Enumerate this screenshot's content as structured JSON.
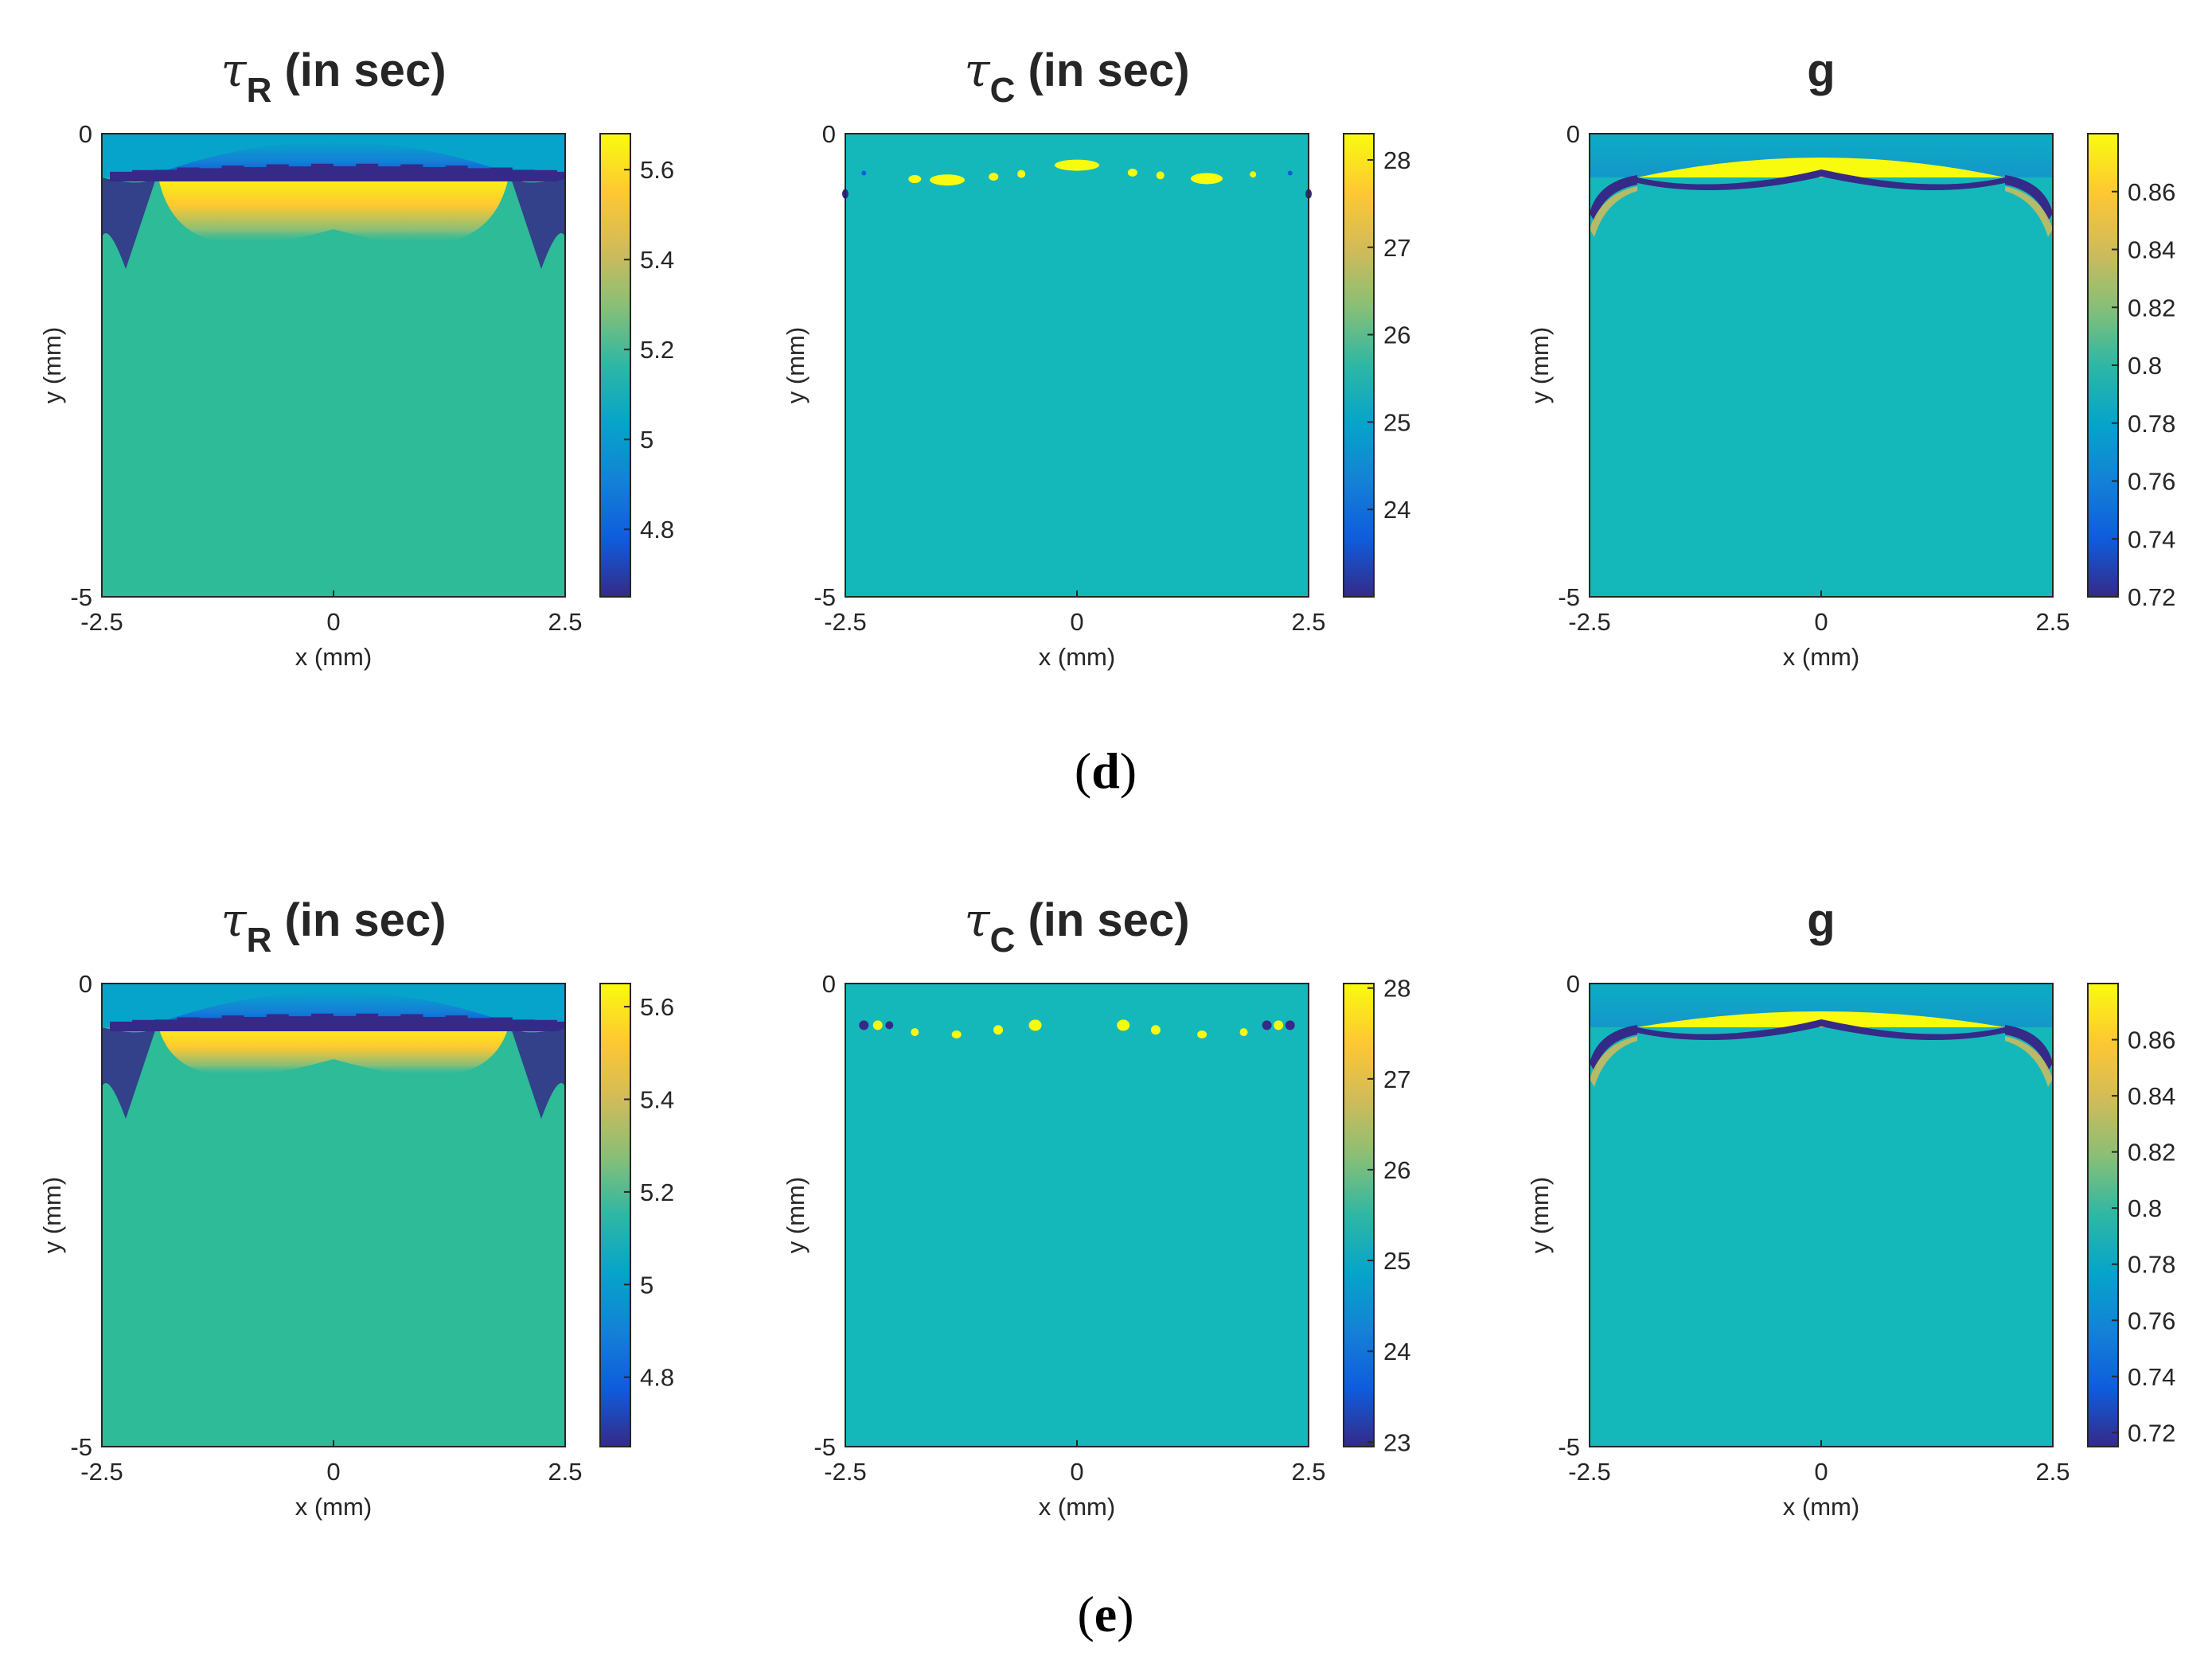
{
  "figure": {
    "rows": [
      {
        "caption": "(d)",
        "caption_letter": "d"
      },
      {
        "caption": "(e)",
        "caption_letter": "e"
      }
    ]
  },
  "colors": {
    "background_teal": "#15b8ba",
    "background_green": "#2dbb98",
    "parula": [
      "#352a87",
      "#0f5cdd",
      "#1481d6",
      "#06a4ca",
      "#2eb7a4",
      "#87bf77",
      "#d1bb59",
      "#fec832",
      "#f9fb0e"
    ]
  },
  "chart_data": [
    {
      "id": "d-tauR",
      "type": "heatmap",
      "row": "d",
      "title": "τR (in sec)",
      "title_symbol": "τ",
      "title_sub": "R",
      "title_rest": " (in sec)",
      "xlabel": "x (mm)",
      "ylabel": "y (mm)",
      "xlim": [
        -2.5,
        2.5
      ],
      "ylim": [
        -5,
        0
      ],
      "xticks": [
        "-2.5",
        "0",
        "2.5"
      ],
      "yticks": [
        "-5",
        "0"
      ],
      "colorbar": {
        "range": [
          4.65,
          5.68
        ],
        "ticks": [
          5.6,
          5.4,
          5.2,
          5,
          4.8
        ],
        "tick_labels": [
          "5.6",
          "5.4",
          "5.2",
          "5",
          "4.8"
        ]
      },
      "background": "#2dbb98"
    },
    {
      "id": "d-tauC",
      "type": "heatmap",
      "row": "d",
      "title": "τC (in sec)",
      "title_symbol": "τ",
      "title_sub": "C",
      "title_rest": " (in sec)",
      "xlabel": "x (mm)",
      "ylabel": "y (mm)",
      "xlim": [
        -2.5,
        2.5
      ],
      "ylim": [
        -5,
        0
      ],
      "xticks": [
        "-2.5",
        "0",
        "2.5"
      ],
      "yticks": [
        "-5",
        "0"
      ],
      "colorbar": {
        "range": [
          23.0,
          28.3
        ],
        "ticks": [
          28,
          27,
          26,
          25,
          24
        ],
        "tick_labels": [
          "28",
          "27",
          "26",
          "25",
          "24"
        ]
      },
      "background": "#15b8ba"
    },
    {
      "id": "d-g",
      "type": "heatmap",
      "row": "d",
      "title": "g",
      "title_symbol": "",
      "title_sub": "",
      "title_rest": "g",
      "xlabel": "x (mm)",
      "ylabel": "y (mm)",
      "xlim": [
        -2.5,
        2.5
      ],
      "ylim": [
        -5,
        0
      ],
      "xticks": [
        "-2.5",
        "0",
        "2.5"
      ],
      "yticks": [
        "-5",
        "0"
      ],
      "colorbar": {
        "range": [
          0.72,
          0.88
        ],
        "ticks": [
          0.86,
          0.84,
          0.82,
          0.8,
          0.78,
          0.76,
          0.74,
          0.72
        ],
        "tick_labels": [
          "0.86",
          "0.84",
          "0.82",
          "0.8",
          "0.78",
          "0.76",
          "0.74",
          "0.72"
        ]
      },
      "background": "#15b8ba"
    },
    {
      "id": "e-tauR",
      "type": "heatmap",
      "row": "e",
      "title": "τR (in sec)",
      "title_symbol": "τ",
      "title_sub": "R",
      "title_rest": " (in sec)",
      "xlabel": "x (mm)",
      "ylabel": "y (mm)",
      "xlim": [
        -2.5,
        2.5
      ],
      "ylim": [
        -5,
        0
      ],
      "xticks": [
        "-2.5",
        "0",
        "2.5"
      ],
      "yticks": [
        "-5",
        "0"
      ],
      "colorbar": {
        "range": [
          4.65,
          5.65
        ],
        "ticks": [
          5.6,
          5.4,
          5.2,
          5,
          4.8
        ],
        "tick_labels": [
          "5.6",
          "5.4",
          "5.2",
          "5",
          "4.8"
        ]
      },
      "background": "#2dbb98"
    },
    {
      "id": "e-tauC",
      "type": "heatmap",
      "row": "e",
      "title": "τC (in sec)",
      "title_symbol": "τ",
      "title_sub": "C",
      "title_rest": " (in sec)",
      "xlabel": "x (mm)",
      "ylabel": "y (mm)",
      "xlim": [
        -2.5,
        2.5
      ],
      "ylim": [
        -5,
        0
      ],
      "xticks": [
        "-2.5",
        "0",
        "2.5"
      ],
      "yticks": [
        "-5",
        "0"
      ],
      "colorbar": {
        "range": [
          22.95,
          28.05
        ],
        "ticks": [
          28,
          27,
          26,
          25,
          24,
          23
        ],
        "tick_labels": [
          "28",
          "27",
          "26",
          "25",
          "24",
          "23"
        ]
      },
      "background": "#15b8ba"
    },
    {
      "id": "e-g",
      "type": "heatmap",
      "row": "e",
      "title": "g",
      "title_symbol": "",
      "title_sub": "",
      "title_rest": "g",
      "xlabel": "x (mm)",
      "ylabel": "y (mm)",
      "xlim": [
        -2.5,
        2.5
      ],
      "ylim": [
        -5,
        0
      ],
      "xticks": [
        "-2.5",
        "0",
        "2.5"
      ],
      "yticks": [
        "-5",
        "0"
      ],
      "colorbar": {
        "range": [
          0.715,
          0.88
        ],
        "ticks": [
          0.86,
          0.84,
          0.82,
          0.8,
          0.78,
          0.76,
          0.74,
          0.72
        ],
        "tick_labels": [
          "0.86",
          "0.84",
          "0.82",
          "0.8",
          "0.78",
          "0.76",
          "0.74",
          "0.72"
        ]
      },
      "background": "#15b8ba"
    }
  ]
}
